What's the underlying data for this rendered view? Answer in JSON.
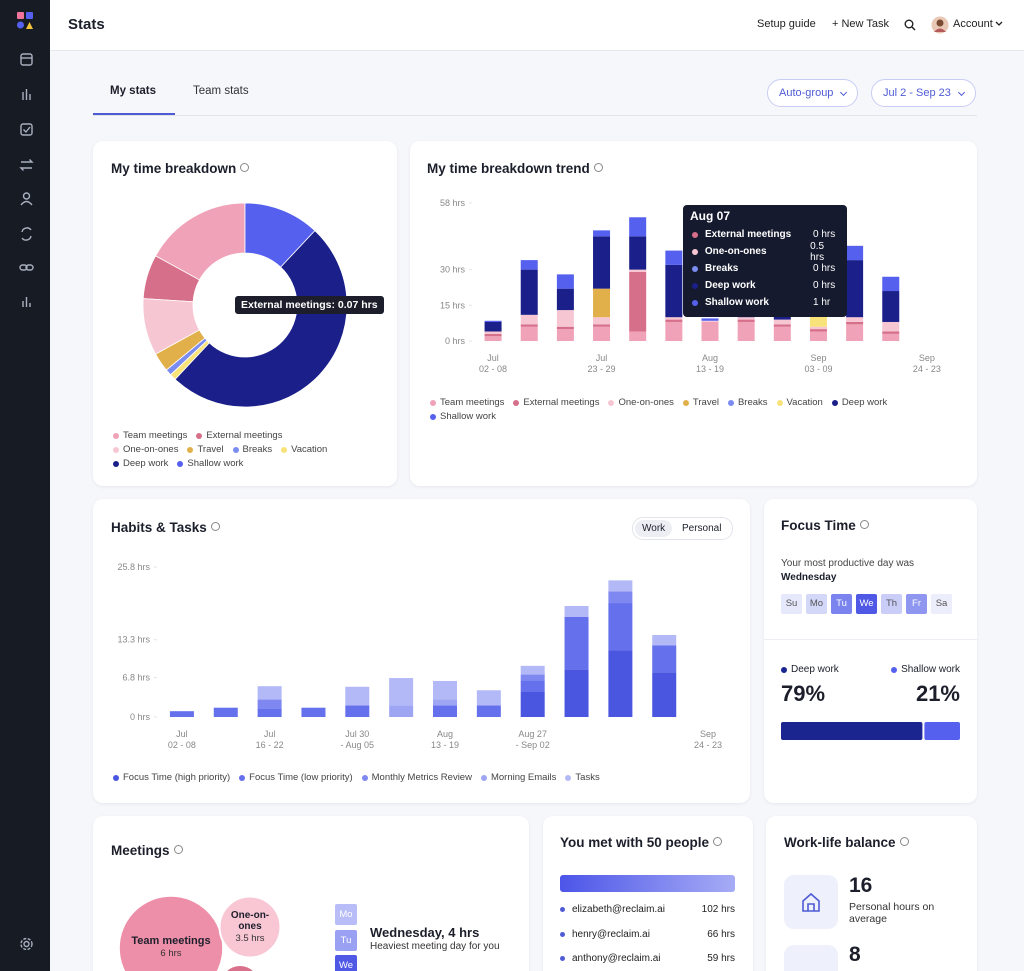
{
  "header": {
    "title": "Stats",
    "setup_guide": "Setup guide",
    "new_task": "+ New Task",
    "account": "Account"
  },
  "tabs": [
    "My stats",
    "Team stats"
  ],
  "filters": [
    "Auto-group",
    "Jul 2 - Sep 23"
  ],
  "chart_data": [
    {
      "type": "pie",
      "donut": true,
      "title": "My time breakdown",
      "categories": [
        "Team meetings",
        "External meetings",
        "One-on-ones",
        "Travel",
        "Breaks",
        "Vacation",
        "Deep work",
        "Shallow work"
      ],
      "values": [
        0.17,
        0.07,
        0.09,
        0.03,
        0.01,
        0.01,
        0.5,
        0.12
      ],
      "colors": [
        "#f0a3b8",
        "#d66f8a",
        "#f7c6d3",
        "#e2b04a",
        "#7b8cf0",
        "#f8e27a",
        "#1a1f8a",
        "#5560ee"
      ],
      "annotation": "External meetings: 0.07 hrs"
    },
    {
      "type": "bar",
      "stacked": true,
      "title": "My time breakdown trend",
      "categories": [
        "Jul\n02 - 08",
        null,
        null,
        "Jul\n23 - 29",
        null,
        null,
        "Aug\n13 - 19",
        null,
        null,
        "Sep\n03 - 09",
        null,
        null,
        "Sep\n24 - 23"
      ],
      "series": [
        {
          "name": "Team meetings",
          "color": "#f0a3b8",
          "values": [
            2,
            6,
            5,
            6,
            4,
            8,
            8,
            8,
            6,
            4,
            7,
            3,
            null
          ]
        },
        {
          "name": "External meetings",
          "color": "#d66f8a",
          "values": [
            1,
            1,
            1,
            1,
            25,
            1,
            0,
            1,
            1,
            1,
            1,
            1,
            null
          ]
        },
        {
          "name": "One-on-ones",
          "color": "#f7c6d3",
          "values": [
            1,
            4,
            7,
            3,
            1,
            1,
            0.5,
            1,
            2,
            1,
            2,
            4,
            null
          ]
        },
        {
          "name": "Travel",
          "color": "#e2b04a",
          "values": [
            0,
            0,
            0,
            12,
            0,
            0,
            0,
            0,
            0,
            0,
            0,
            0,
            null
          ]
        },
        {
          "name": "Breaks",
          "color": "#7b8cf0",
          "values": [
            0,
            0,
            0,
            0,
            0,
            0,
            0,
            0,
            0,
            0,
            0,
            0,
            null
          ]
        },
        {
          "name": "Vacation",
          "color": "#f8e27a",
          "values": [
            0,
            0,
            0,
            0,
            0,
            0,
            0,
            0,
            0,
            5,
            0,
            0,
            null
          ]
        },
        {
          "name": "Deep work",
          "color": "#1a1f8a",
          "values": [
            4,
            19,
            9,
            22,
            14,
            22,
            0,
            10,
            8,
            10,
            24,
            13,
            null
          ]
        },
        {
          "name": "Shallow work",
          "color": "#5560ee",
          "values": [
            0.5,
            4,
            6,
            2.5,
            8,
            6,
            1,
            3,
            2,
            4,
            6,
            6,
            null
          ]
        }
      ],
      "ylim": [
        0,
        58
      ],
      "yticks": [
        {
          "value": 0,
          "label": "0 hrs"
        },
        {
          "value": 15,
          "label": "15 hrs"
        },
        {
          "value": 30,
          "label": "30 hrs"
        },
        {
          "value": 58,
          "label": "58 hrs"
        }
      ],
      "tooltip": {
        "title": "Aug 07",
        "rows": [
          {
            "label": "External meetings",
            "value": "0 hrs"
          },
          {
            "label": "One-on-ones",
            "value": "0.5 hrs"
          },
          {
            "label": "Breaks",
            "value": "0 hrs"
          },
          {
            "label": "Deep work",
            "value": "0 hrs"
          },
          {
            "label": "Shallow work",
            "value": "1 hr"
          }
        ]
      }
    },
    {
      "type": "bar",
      "stacked": true,
      "title": "Habits & Tasks",
      "toggle": [
        "Work",
        "Personal"
      ],
      "categories": [
        "Jul\n02 - 08",
        null,
        "Jul\n16 - 22",
        null,
        "Jul 30\n- Aug 05",
        null,
        "Aug\n13 - 19",
        null,
        "Aug 27\n- Sep 02",
        null,
        null,
        null,
        "Sep\n24 - 23"
      ],
      "series": [
        {
          "name": "Focus Time (high priority)",
          "color": "#4a55e0",
          "values": [
            0,
            0,
            0,
            0,
            0,
            0,
            0,
            0,
            4.3,
            8.2,
            11.5,
            7.7,
            null
          ]
        },
        {
          "name": "Focus Time (low priority)",
          "color": "#6470ec",
          "values": [
            1,
            1.6,
            1.5,
            1.6,
            2,
            0,
            2,
            2,
            2,
            9,
            8.1,
            4.6,
            null
          ]
        },
        {
          "name": "Monthly Metrics Review",
          "color": "#7e88f0",
          "values": [
            0,
            0,
            1.5,
            0,
            0,
            0,
            0,
            0,
            1,
            0,
            2,
            0,
            null
          ]
        },
        {
          "name": "Morning Emails",
          "color": "#9ea6f4",
          "values": [
            0,
            0,
            0,
            0,
            0,
            2,
            1,
            0,
            0,
            0,
            0,
            0,
            null
          ]
        },
        {
          "name": "Tasks",
          "color": "#b3b9f7",
          "values": [
            0,
            0,
            2.3,
            0,
            3.2,
            4.7,
            3.2,
            2.6,
            1.5,
            1.9,
            1.9,
            1.8,
            null
          ]
        }
      ],
      "ylim": [
        0,
        25.8
      ],
      "yticks": [
        {
          "value": 0,
          "label": "0 hrs"
        },
        {
          "value": 6.8,
          "label": "6.8 hrs"
        },
        {
          "value": 13.3,
          "label": "13.3 hrs"
        },
        {
          "value": 25.8,
          "label": "25.8 hrs"
        }
      ]
    },
    {
      "type": "meter",
      "xlim": [
        0,
        100
      ],
      "series": [
        {
          "name": "Deep work",
          "color": "#1a2590",
          "values": [
            79
          ],
          "value_labels": [
            "79%"
          ]
        },
        {
          "name": "Shallow work",
          "color": "#5560ee",
          "values": [
            21
          ],
          "value_labels": [
            "21%"
          ]
        }
      ]
    },
    {
      "type": "bubble",
      "title": "Meetings",
      "categories": [
        "Team meetings",
        "One-on-ones",
        null
      ],
      "values": [
        6,
        3.5,
        2.3
      ],
      "value_labels": [
        "6 hrs",
        "3.5 hrs",
        null
      ],
      "colors": [
        "#ee8fa9",
        "#f9c6d4",
        "#d9708c"
      ]
    }
  ],
  "focus_time": {
    "title": "Focus Time",
    "caption": "Your most productive day was",
    "day": "Wednesday",
    "days": [
      "Su",
      "Mo",
      "Tu",
      "We",
      "Th",
      "Fr",
      "Sa"
    ],
    "day_colors": [
      "#e6e9fb",
      "#d3d7f8",
      "#7b84ee",
      "#4f59e6",
      "#c9cdf7",
      "#8e96f0",
      "#eceefb"
    ]
  },
  "meetings": {
    "days": [
      "Mo",
      "Tu",
      "We"
    ],
    "day_colors": [
      "#b8bdf7",
      "#9aa1f3",
      "#4f59e6"
    ],
    "heaviest": "Wednesday, 4 hrs",
    "caption": "Heaviest meeting day for you"
  },
  "people": {
    "title": "You met with 50 people",
    "rows": [
      {
        "email": "elizabeth@reclaim.ai",
        "hours": "102 hrs"
      },
      {
        "email": "henry@reclaim.ai",
        "hours": "66 hrs"
      },
      {
        "email": "anthony@reclaim.ai",
        "hours": "59 hrs"
      }
    ]
  },
  "work_life": {
    "title": "Work-life balance",
    "items": [
      {
        "value": 16,
        "label": "Personal hours on average"
      },
      {
        "value": 8
      }
    ]
  }
}
